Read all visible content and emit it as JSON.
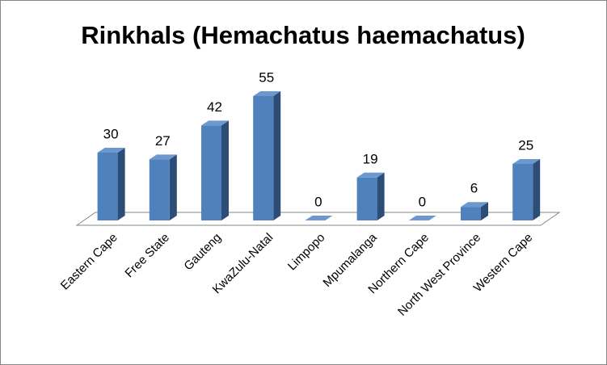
{
  "chart_data": {
    "type": "bar3d",
    "title": "Rinkhals (Hemachatus haemachatus)",
    "categories": [
      "Eastern Cape",
      "Free State",
      "Gauteng",
      "KwaZulu-Natal",
      "Limpopo",
      "Mpumalanga",
      "Northern Cape",
      "North West Province",
      "Western Cape"
    ],
    "values": [
      30,
      27,
      42,
      55,
      0,
      19,
      0,
      6,
      25
    ],
    "color": "#4f81bd"
  }
}
